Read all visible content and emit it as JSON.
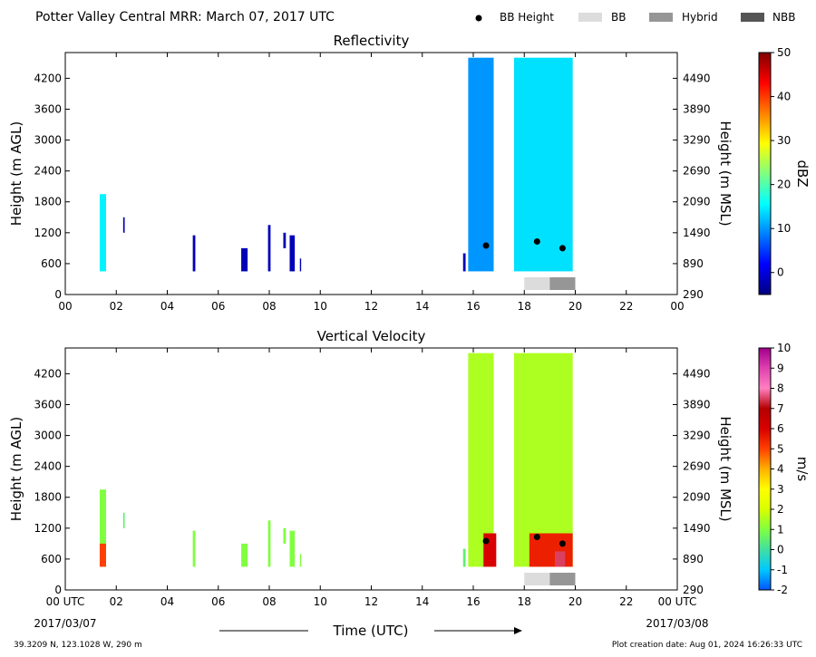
{
  "header": {
    "title": "Potter Valley Central MRR:  March 07, 2017 UTC",
    "legend": [
      {
        "label": "BB Height",
        "kind": "dot",
        "color": "#000000"
      },
      {
        "label": "BB",
        "kind": "box",
        "color": "#dcdcdc"
      },
      {
        "label": "Hybrid",
        "kind": "box",
        "color": "#969696"
      },
      {
        "label": "NBB",
        "kind": "box",
        "color": "#555555"
      }
    ]
  },
  "footer": {
    "location": "39.3209 N, 123.1028 W, 290 m",
    "creation": "Plot creation date: Aug 01, 2024 16:26:33 UTC",
    "date_left": "2017/03/07",
    "date_right": "2017/03/08"
  },
  "chart_data": [
    {
      "type": "heatmap",
      "title": "Reflectivity",
      "xlabel": "",
      "ylabel": "Height (m AGL)",
      "ylabel_right": "Height (m MSL)",
      "xlim": [
        0,
        24
      ],
      "ylim": [
        0,
        4700
      ],
      "x_ticks": [
        "00",
        "02",
        "04",
        "06",
        "08",
        "10",
        "12",
        "14",
        "16",
        "18",
        "20",
        "22",
        "00"
      ],
      "y_ticks": [
        0,
        600,
        1200,
        1800,
        2400,
        3000,
        3600,
        4200
      ],
      "y_ticks_right": [
        290,
        890,
        1490,
        2090,
        2690,
        3290,
        3890,
        4490
      ],
      "colorbar": {
        "label": "dBZ",
        "range": [
          -5,
          50
        ],
        "ticks": [
          0,
          10,
          20,
          30,
          40,
          50
        ],
        "colors": [
          "#00007f",
          "#0000ff",
          "#007fff",
          "#00ffff",
          "#7fff7f",
          "#ffff00",
          "#ff7f00",
          "#ff0000",
          "#7f0000"
        ]
      },
      "bb_heights": [
        {
          "time": 16.5,
          "height": 950
        },
        {
          "time": 18.5,
          "height": 1030
        },
        {
          "time": 19.5,
          "height": 900
        }
      ],
      "bb_types": [
        {
          "start": 18.0,
          "end": 19.0,
          "type": "BB"
        },
        {
          "start": 19.0,
          "end": 20.0,
          "type": "Hybrid"
        }
      ],
      "echoes": [
        {
          "t0": 1.35,
          "t1": 1.6,
          "h0": 450,
          "h1": 1950,
          "value": 15
        },
        {
          "t0": 2.27,
          "t1": 2.33,
          "h0": 1200,
          "h1": 1500,
          "value": -2
        },
        {
          "t0": 5.0,
          "t1": 5.1,
          "h0": 450,
          "h1": 1150,
          "value": -2
        },
        {
          "t0": 6.9,
          "t1": 7.15,
          "h0": 450,
          "h1": 900,
          "value": -2
        },
        {
          "t0": 7.95,
          "t1": 8.05,
          "h0": 450,
          "h1": 1350,
          "value": -2
        },
        {
          "t0": 8.55,
          "t1": 8.65,
          "h0": 900,
          "h1": 1200,
          "value": -2
        },
        {
          "t0": 8.8,
          "t1": 9.0,
          "h0": 450,
          "h1": 1150,
          "value": -2
        },
        {
          "t0": 9.2,
          "t1": 9.25,
          "h0": 450,
          "h1": 700,
          "value": -2
        },
        {
          "t0": 15.6,
          "t1": 15.7,
          "h0": 450,
          "h1": 800,
          "value": -2
        },
        {
          "t0": 15.8,
          "t1": 16.8,
          "h0": 450,
          "h1": 4600,
          "value": 10
        },
        {
          "t0": 17.6,
          "t1": 19.9,
          "h0": 450,
          "h1": 4600,
          "value": 14
        }
      ]
    },
    {
      "type": "heatmap",
      "title": "Vertical Velocity",
      "xlabel": "Time (UTC)",
      "ylabel": "Height (m AGL)",
      "ylabel_right": "Height (m MSL)",
      "xlim": [
        0,
        24
      ],
      "ylim": [
        0,
        4700
      ],
      "x_ticks": [
        "00 UTC",
        "02",
        "04",
        "06",
        "08",
        "10",
        "12",
        "14",
        "16",
        "18",
        "20",
        "22",
        "00 UTC"
      ],
      "y_ticks": [
        0,
        600,
        1200,
        1800,
        2400,
        3000,
        3600,
        4200
      ],
      "y_ticks_right": [
        290,
        890,
        1490,
        2090,
        2690,
        3290,
        3890,
        4490
      ],
      "colorbar": {
        "label": "m/s",
        "range": [
          -2,
          10
        ],
        "ticks": [
          -2,
          -1,
          0,
          1,
          2,
          3,
          4,
          5,
          6,
          7,
          8,
          9,
          10
        ],
        "colors": [
          "#0055ff",
          "#00c8ff",
          "#40e0a0",
          "#80ff40",
          "#d8ff00",
          "#ffff00",
          "#ffb000",
          "#ff4000",
          "#d80000",
          "#b40000",
          "#ff80c0",
          "#e040b0",
          "#a0008c"
        ]
      },
      "bb_heights": [
        {
          "time": 16.5,
          "height": 950
        },
        {
          "time": 18.5,
          "height": 1030
        },
        {
          "time": 19.5,
          "height": 900
        }
      ],
      "bb_types": [
        {
          "start": 18.0,
          "end": 19.0,
          "type": "BB"
        },
        {
          "start": 19.0,
          "end": 20.0,
          "type": "Hybrid"
        }
      ],
      "echoes": [
        {
          "t0": 1.35,
          "t1": 1.6,
          "h0": 450,
          "h1": 1950,
          "value": 1
        },
        {
          "t0": 1.35,
          "t1": 1.6,
          "h0": 450,
          "h1": 900,
          "value": 5
        },
        {
          "t0": 2.27,
          "t1": 2.33,
          "h0": 1200,
          "h1": 1500,
          "value": 0.5
        },
        {
          "t0": 5.0,
          "t1": 5.1,
          "h0": 450,
          "h1": 1150,
          "value": 1
        },
        {
          "t0": 6.9,
          "t1": 7.15,
          "h0": 450,
          "h1": 900,
          "value": 1
        },
        {
          "t0": 7.95,
          "t1": 8.05,
          "h0": 450,
          "h1": 1350,
          "value": 1
        },
        {
          "t0": 8.55,
          "t1": 8.65,
          "h0": 900,
          "h1": 1200,
          "value": 1
        },
        {
          "t0": 8.8,
          "t1": 9.0,
          "h0": 450,
          "h1": 1150,
          "value": 1
        },
        {
          "t0": 9.2,
          "t1": 9.25,
          "h0": 450,
          "h1": 700,
          "value": 1
        },
        {
          "t0": 15.6,
          "t1": 15.7,
          "h0": 450,
          "h1": 800,
          "value": 0.5
        },
        {
          "t0": 15.8,
          "t1": 16.8,
          "h0": 450,
          "h1": 4600,
          "value": 1.5
        },
        {
          "t0": 16.4,
          "t1": 16.9,
          "h0": 450,
          "h1": 1100,
          "value": 6
        },
        {
          "t0": 17.6,
          "t1": 19.9,
          "h0": 450,
          "h1": 4600,
          "value": 1.5
        },
        {
          "t0": 18.2,
          "t1": 19.9,
          "h0": 450,
          "h1": 1100,
          "value": 5.5
        },
        {
          "t0": 19.2,
          "t1": 19.6,
          "h0": 450,
          "h1": 750,
          "value": 7.5
        }
      ]
    }
  ]
}
